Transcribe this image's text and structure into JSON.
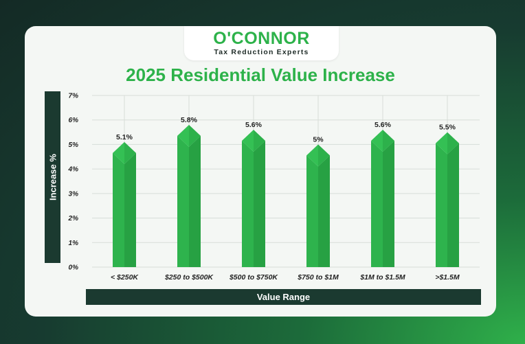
{
  "brand": {
    "name": "O'CONNOR",
    "tagline": "Tax Reduction Experts"
  },
  "chart_data": {
    "type": "bar",
    "title": "2025 Residential Value Increase",
    "xlabel": "Value Range",
    "ylabel": "Increase %",
    "categories": [
      "< $250K",
      "$250 to $500K",
      "$500 to $750K",
      "$750 to $1M",
      "$1M to $1.5M",
      ">$1.5M"
    ],
    "values": [
      5.1,
      5.8,
      5.6,
      5.0,
      5.6,
      5.5
    ],
    "data_labels": [
      "5.1%",
      "5.8%",
      "5.6%",
      "5%",
      "5.6%",
      "5.5%"
    ],
    "y_ticks": [
      0,
      1,
      2,
      3,
      4,
      5,
      6,
      7
    ],
    "y_tick_labels": [
      "0%",
      "1%",
      "2%",
      "3%",
      "4%",
      "5%",
      "6%",
      "7%"
    ],
    "ylim": [
      0,
      7
    ],
    "grid": true,
    "legend": "none",
    "colors": {
      "bar_light": "#2eb34d",
      "bar_dark": "#27a143",
      "cap_light": "#34c054",
      "cap_dark": "#23943c",
      "grid": "#d7ddd8"
    }
  }
}
